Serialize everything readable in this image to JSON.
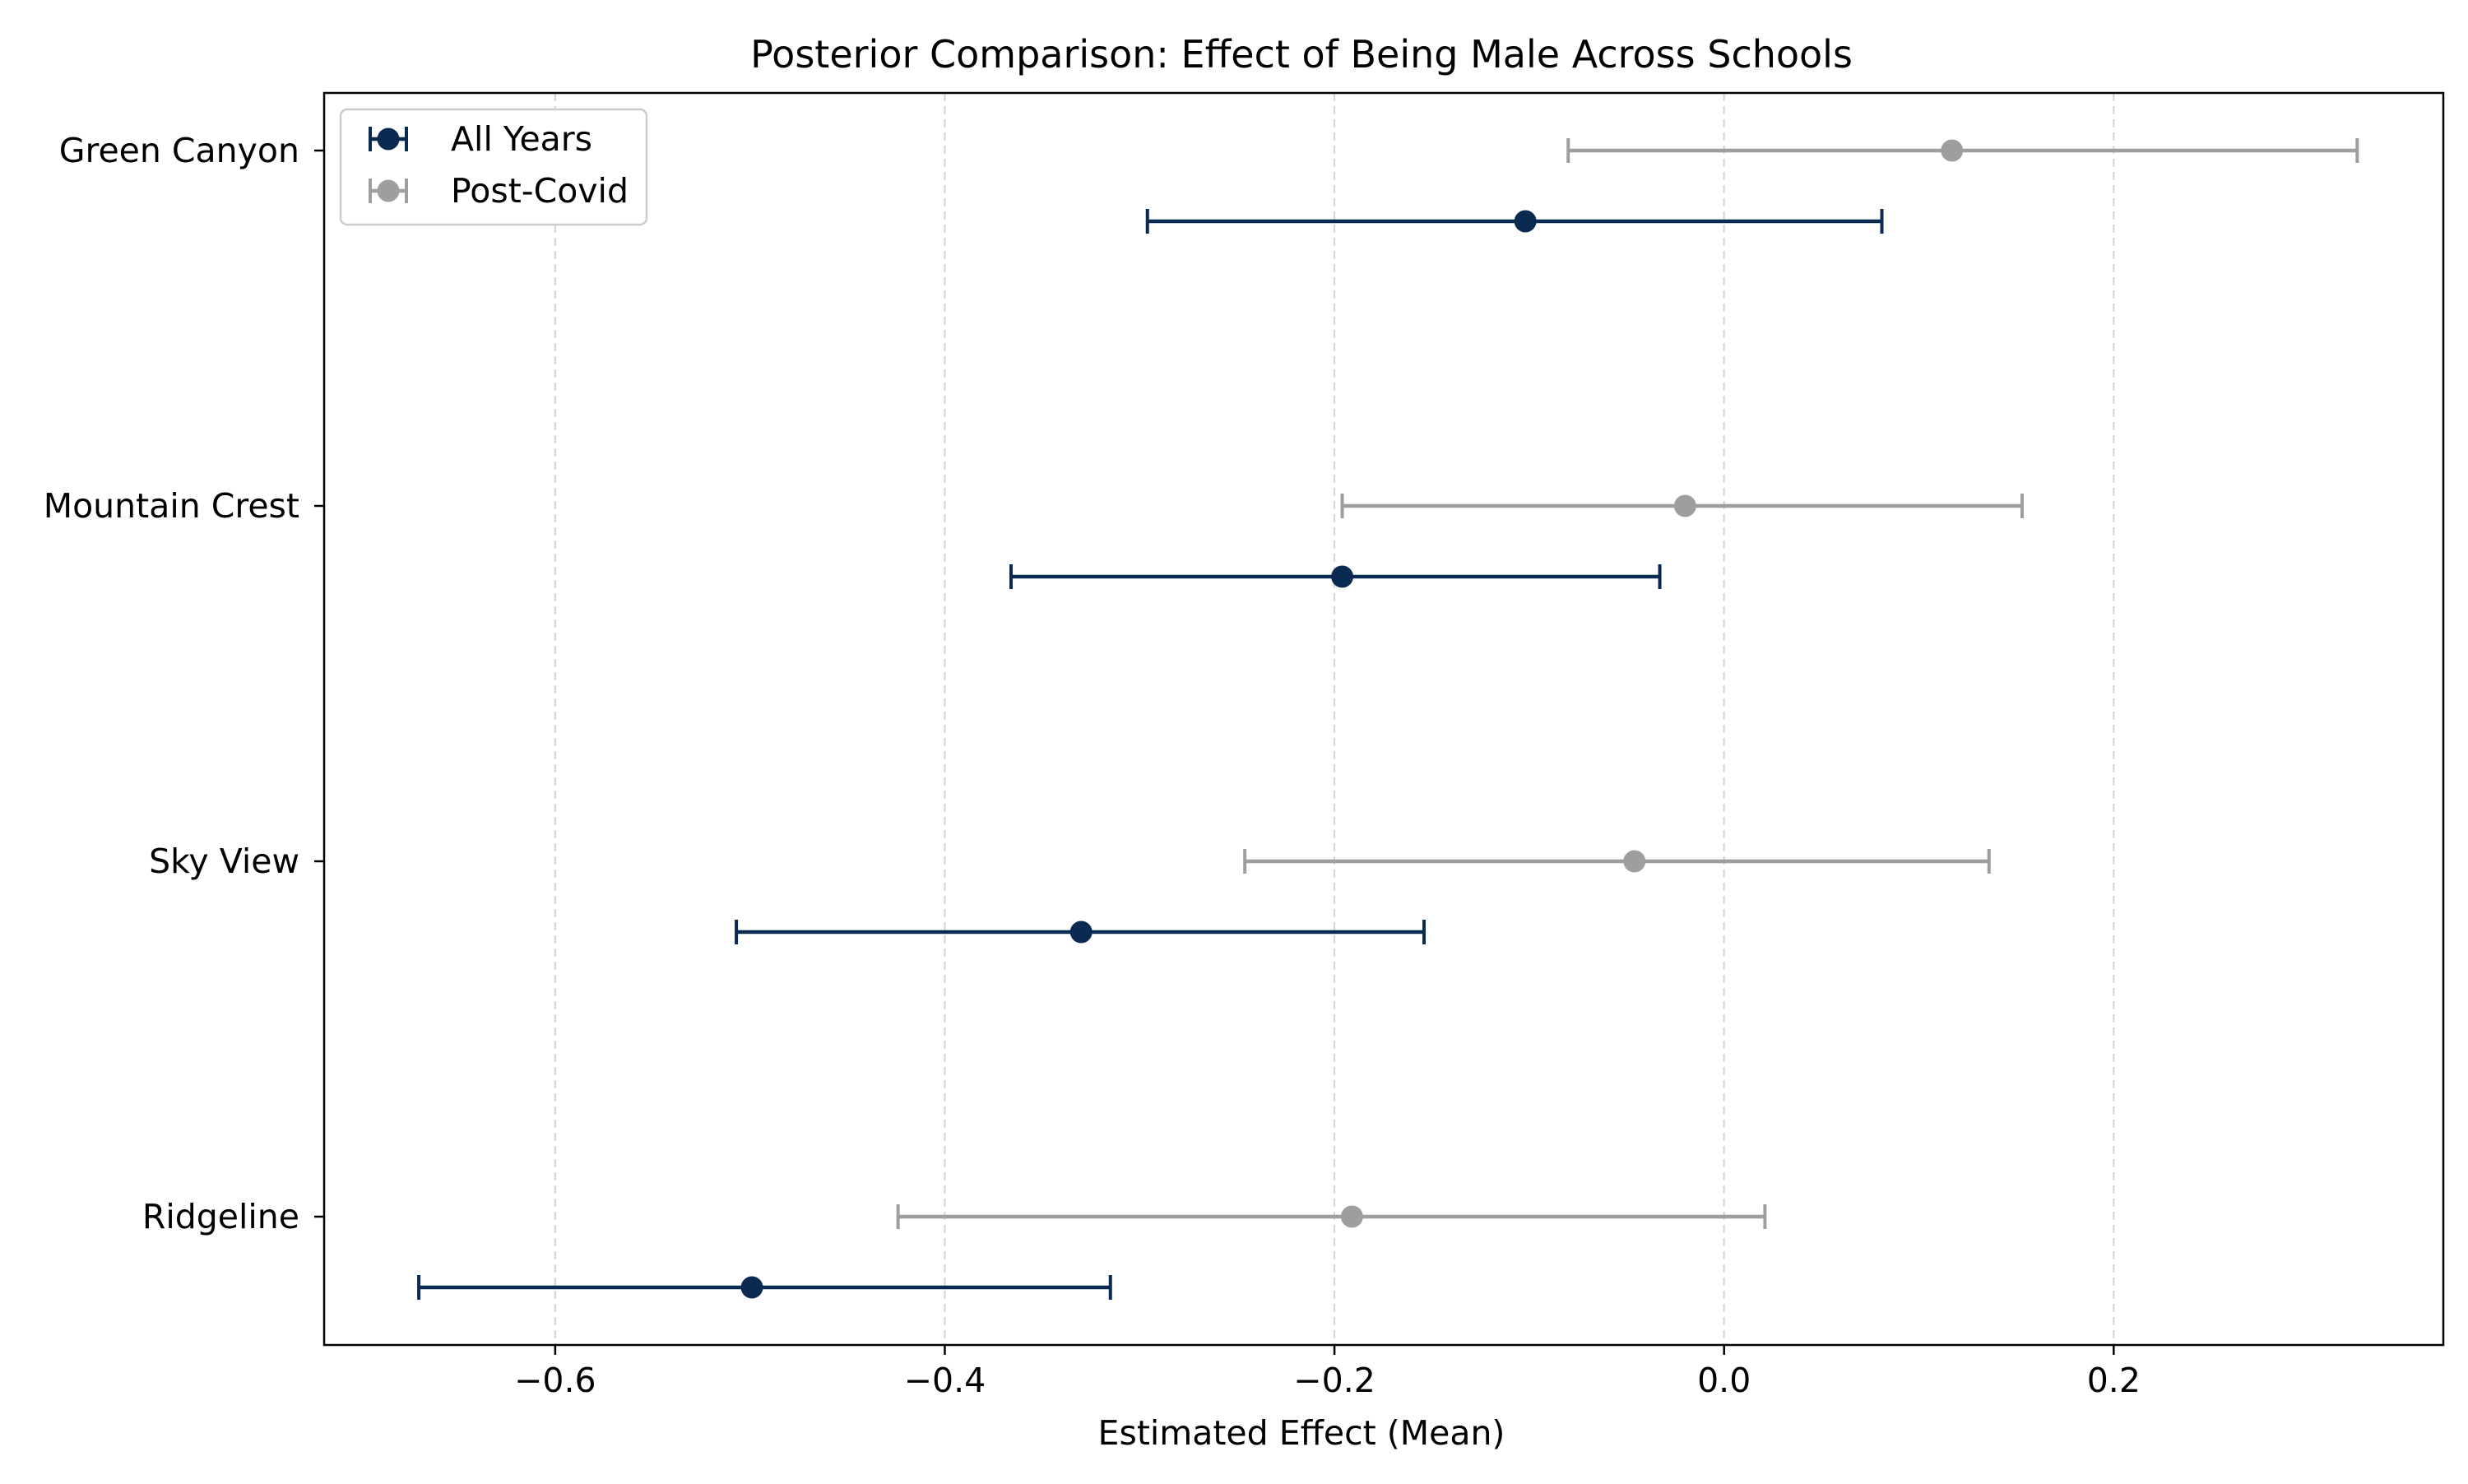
{
  "chart_data": {
    "type": "scatter",
    "title": "Posterior Comparison: Effect of Being Male Across Schools",
    "xlabel": "Estimated Effect (Mean)",
    "ylabel": "",
    "xlim": [
      -0.7186,
      0.3692
    ],
    "xticks": [
      -0.6,
      -0.4,
      -0.2,
      0.0,
      0.2
    ],
    "xtick_labels": [
      "−0.6",
      "−0.4",
      "−0.2",
      "0.0",
      "0.2"
    ],
    "grid": "x-dashed",
    "legend_position": "top-left",
    "categories": [
      "Green Canyon",
      "Mountain Crest",
      "Sky View",
      "Ridgeline"
    ],
    "series": [
      {
        "name": "All Years",
        "color": "#0a2a52",
        "mean": [
          -0.102,
          -0.196,
          -0.33,
          -0.499
        ],
        "lower": [
          -0.296,
          -0.366,
          -0.507,
          -0.67
        ],
        "upper": [
          0.081,
          -0.033,
          -0.154,
          -0.315
        ]
      },
      {
        "name": "Post-Covid",
        "color": "#9e9e9e",
        "mean": [
          0.117,
          -0.02,
          -0.046,
          -0.191
        ],
        "lower": [
          -0.08,
          -0.196,
          -0.246,
          -0.424
        ],
        "upper": [
          0.325,
          0.153,
          0.136,
          0.021
        ]
      }
    ]
  }
}
